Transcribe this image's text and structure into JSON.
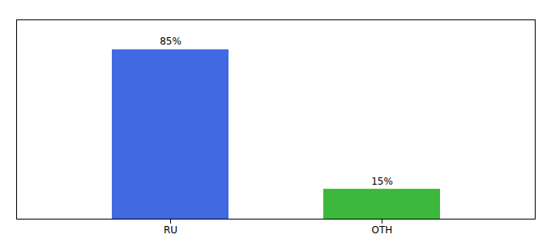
{
  "chart_data": {
    "type": "bar",
    "categories": [
      "RU",
      "OTH"
    ],
    "values": [
      85,
      15
    ],
    "value_labels": [
      "85%",
      "15%"
    ],
    "colors": [
      "#4169e1",
      "#3cb83c"
    ],
    "ylim": [
      0,
      100
    ],
    "data_labels": true,
    "tick_labels": "x"
  }
}
